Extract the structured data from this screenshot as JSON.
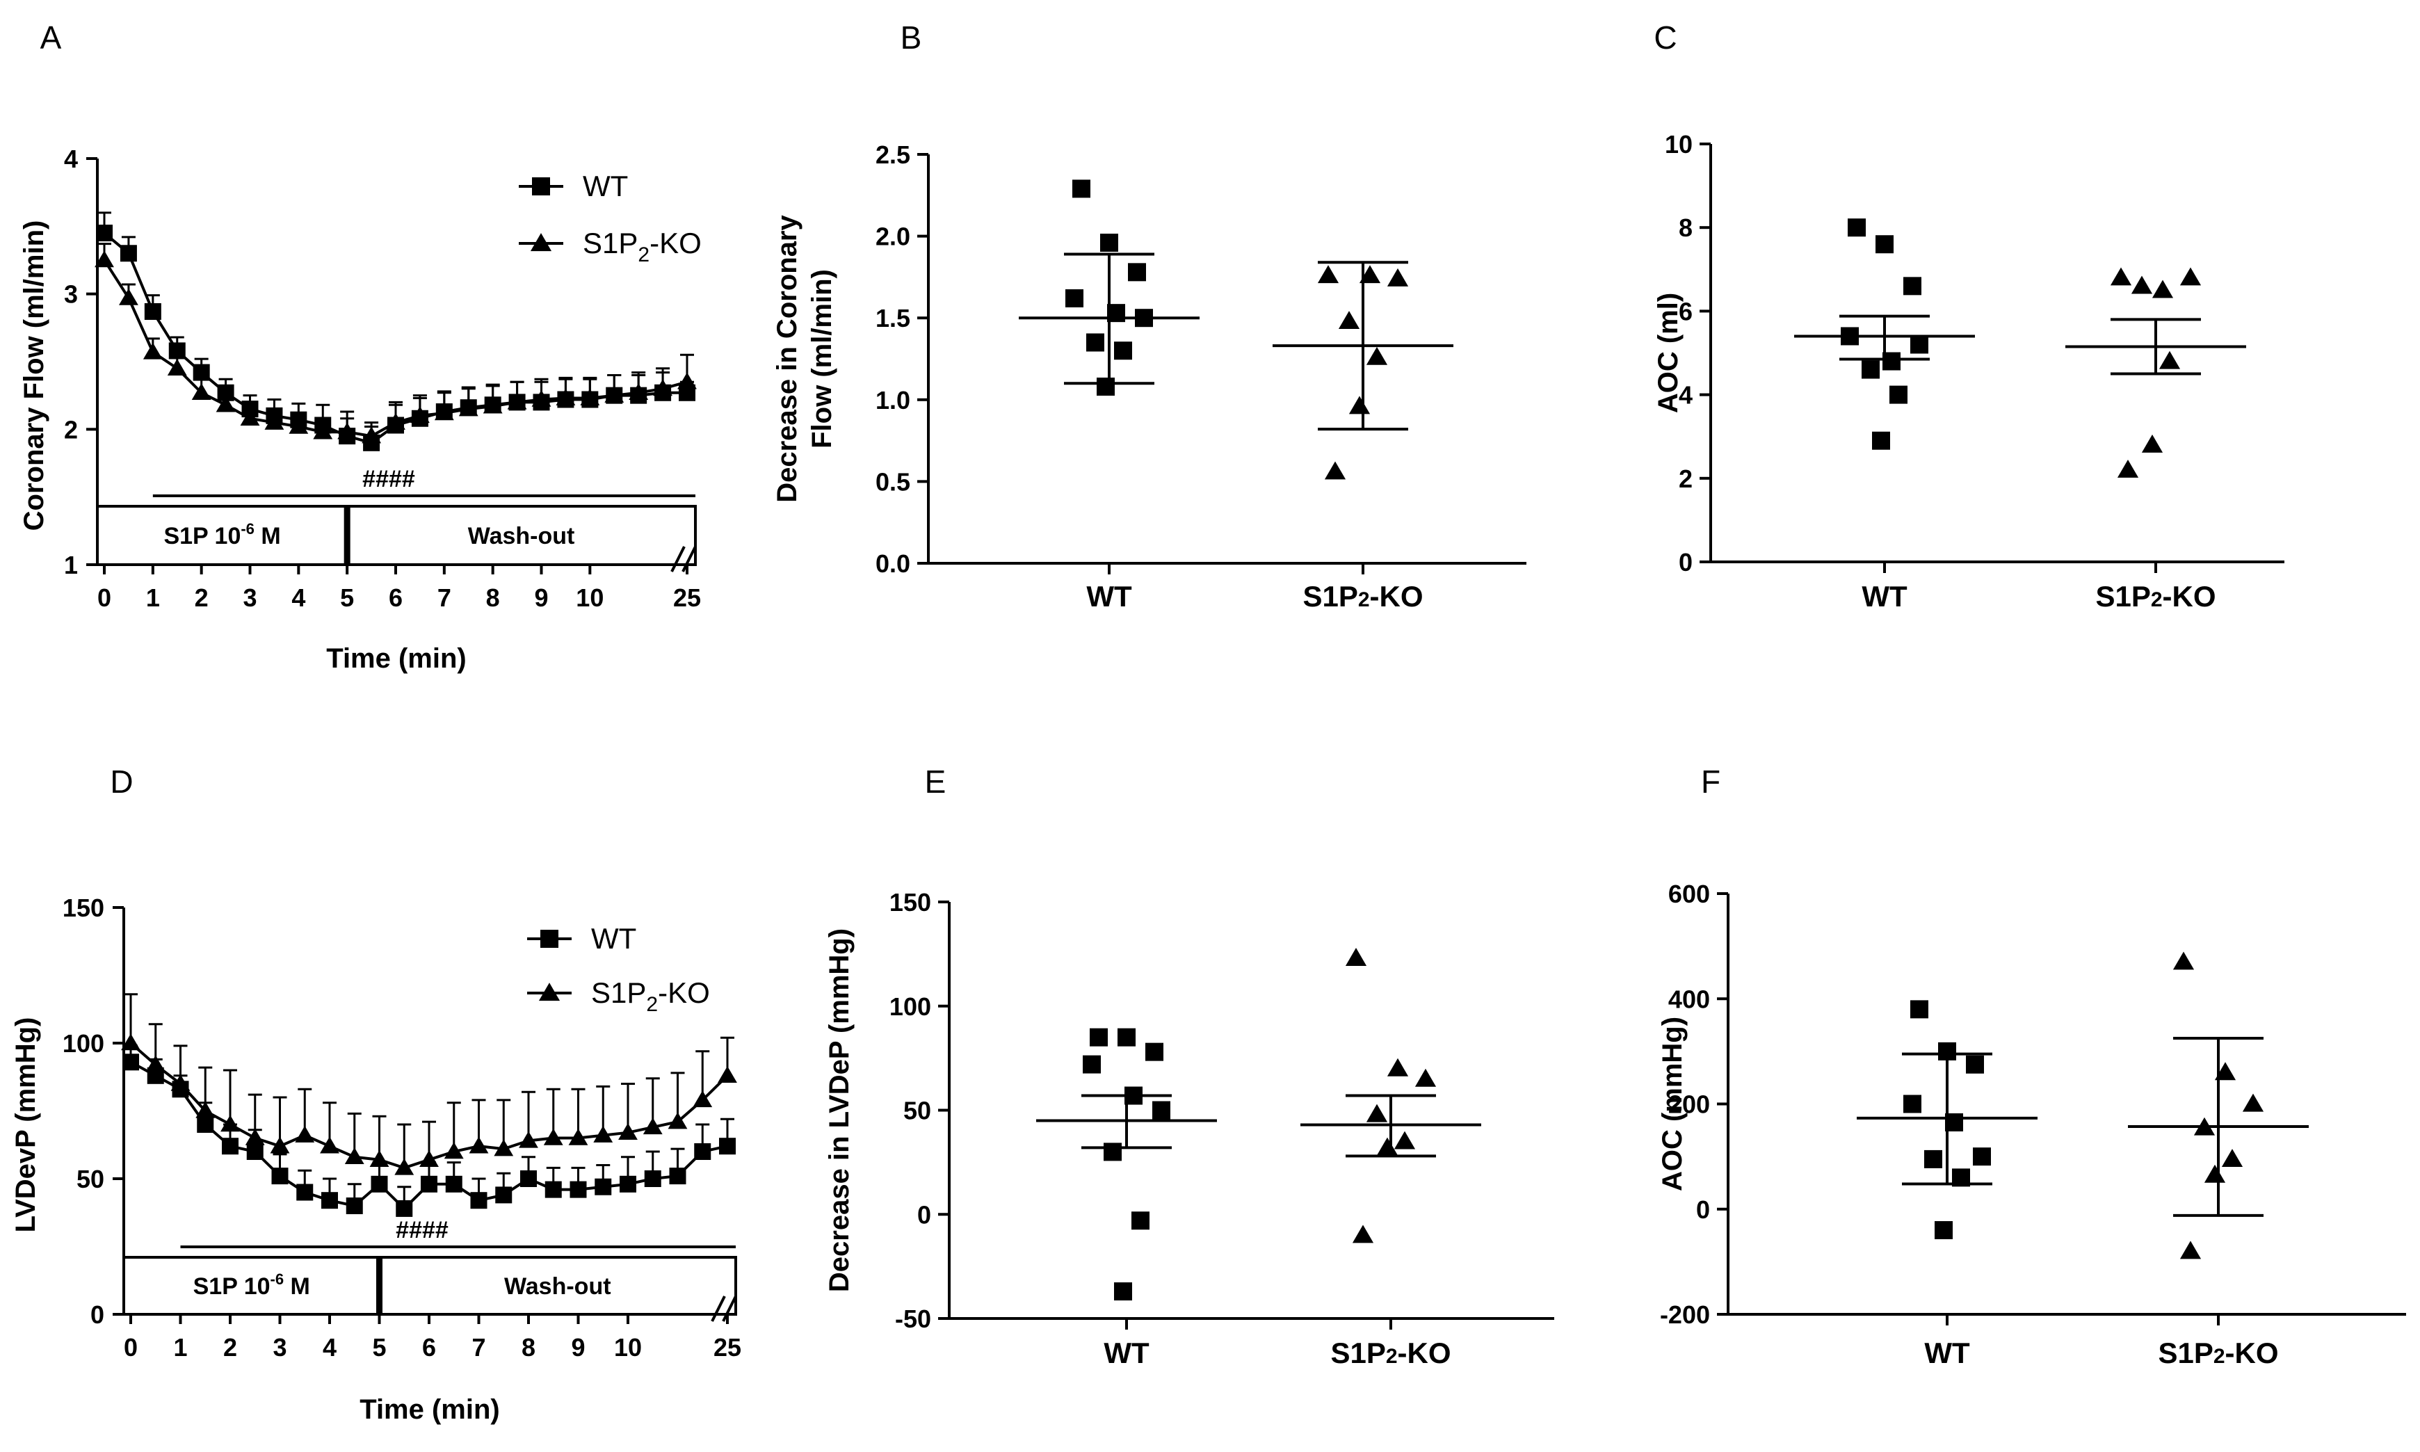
{
  "figure": {
    "panels": [
      "A",
      "B",
      "C",
      "D",
      "E",
      "F"
    ]
  },
  "chart_data": [
    {
      "id": "A",
      "type": "line",
      "title": "",
      "xlabel": "Time (min)",
      "ylabel": "Coronary Flow (ml/min)",
      "ylim": [
        1,
        4
      ],
      "yticks": [
        "1",
        "2",
        "3",
        "4"
      ],
      "xticks": [
        "0",
        "1",
        "2",
        "3",
        "4",
        "5",
        "6",
        "7",
        "8",
        "9",
        "10",
        "25"
      ],
      "x_break_symbol": "//",
      "annotation": "####",
      "protocol": [
        {
          "label_main": "S1P 10",
          "label_sup": "-6",
          "label_end": " M",
          "from": 0,
          "to": 5
        },
        {
          "label_main": "Wash-out",
          "from": 5,
          "to": 25
        }
      ],
      "legend": {
        "position": "top-right",
        "entries": [
          {
            "main": "WT",
            "sub": "",
            "tail": "",
            "marker": "square"
          },
          {
            "main": "S1P",
            "sub": "2",
            "tail": "-KO",
            "marker": "triangle"
          }
        ]
      },
      "series": [
        {
          "name": "WT",
          "marker": "square",
          "x": [
            0,
            0.5,
            1,
            1.5,
            2,
            2.5,
            3,
            3.5,
            4,
            4.5,
            5,
            5.5,
            6,
            6.5,
            7,
            7.5,
            8,
            8.5,
            9,
            9.5,
            10,
            10.5,
            11,
            11.5,
            25
          ],
          "y": [
            3.45,
            3.3,
            2.87,
            2.58,
            2.42,
            2.27,
            2.15,
            2.1,
            2.07,
            2.03,
            1.95,
            1.9,
            2.03,
            2.08,
            2.13,
            2.16,
            2.18,
            2.2,
            2.2,
            2.22,
            2.22,
            2.25,
            2.25,
            2.27,
            2.27
          ],
          "err": [
            0.15,
            0.12,
            0.12,
            0.1,
            0.1,
            0.1,
            0.1,
            0.12,
            0.12,
            0.15,
            0.18,
            0.12,
            0.15,
            0.15,
            0.15,
            0.15,
            0.15,
            0.15,
            0.15,
            0.15,
            0.15,
            0.15,
            0.15,
            0.15,
            0.08
          ]
        },
        {
          "name": "S1P2-KO",
          "marker": "triangle",
          "x": [
            0,
            0.5,
            1,
            1.5,
            2,
            2.5,
            3,
            3.5,
            4,
            4.5,
            5,
            5.5,
            6,
            6.5,
            7,
            7.5,
            8,
            8.5,
            9,
            9.5,
            10,
            10.5,
            11,
            11.5,
            25
          ],
          "y": [
            3.25,
            2.97,
            2.57,
            2.45,
            2.27,
            2.18,
            2.08,
            2.05,
            2.02,
            1.98,
            1.98,
            1.95,
            2.05,
            2.1,
            2.12,
            2.15,
            2.17,
            2.2,
            2.22,
            2.23,
            2.23,
            2.25,
            2.27,
            2.3,
            2.35
          ],
          "err": [
            0.12,
            0.1,
            0.1,
            0.1,
            0.1,
            0.1,
            0.1,
            0.1,
            0.1,
            0.1,
            0.1,
            0.1,
            0.15,
            0.15,
            0.15,
            0.15,
            0.15,
            0.15,
            0.15,
            0.15,
            0.15,
            0.15,
            0.15,
            0.15,
            0.2
          ]
        }
      ]
    },
    {
      "id": "B",
      "type": "scatter",
      "title": "",
      "ylabel_lines": [
        "Decrease in Coronary",
        "Flow (ml/min)"
      ],
      "ylim": [
        0,
        2.5
      ],
      "yticks": [
        "0.0",
        "0.5",
        "1.0",
        "1.5",
        "2.0",
        "2.5"
      ],
      "categories": [
        {
          "main": "WT",
          "sub": "",
          "tail": ""
        },
        {
          "main": "S1P",
          "sub": "2",
          "tail": "-KO"
        }
      ],
      "groups": [
        {
          "category": "WT",
          "marker": "square",
          "values": [
            2.29,
            1.96,
            1.78,
            1.62,
            1.53,
            1.5,
            1.35,
            1.3,
            1.08
          ],
          "mean": 1.5,
          "err_low": 1.1,
          "err_high": 1.89
        },
        {
          "category": "S1P2-KO",
          "marker": "triangle",
          "values": [
            1.76,
            1.76,
            1.74,
            1.48,
            1.26,
            0.96,
            0.56
          ],
          "mean": 1.33,
          "err_low": 0.82,
          "err_high": 1.84
        }
      ]
    },
    {
      "id": "C",
      "type": "scatter",
      "title": "",
      "ylabel_lines": [
        "AOC (ml)"
      ],
      "ylim": [
        0,
        10
      ],
      "yticks": [
        "0",
        "2",
        "4",
        "6",
        "8",
        "10"
      ],
      "categories": [
        {
          "main": "WT",
          "sub": "",
          "tail": ""
        },
        {
          "main": "S1P",
          "sub": "2",
          "tail": "-KO"
        }
      ],
      "groups": [
        {
          "category": "WT",
          "marker": "square",
          "values": [
            8.0,
            7.6,
            6.6,
            5.4,
            4.8,
            5.2,
            4.6,
            4.0,
            2.9
          ],
          "mean": 5.4,
          "err_low": 4.85,
          "err_high": 5.88
        },
        {
          "category": "S1P2-KO",
          "marker": "triangle",
          "values": [
            6.8,
            6.5,
            6.8,
            6.6,
            4.8,
            2.8,
            2.2
          ],
          "mean": 5.15,
          "err_low": 4.5,
          "err_high": 5.8
        }
      ]
    },
    {
      "id": "D",
      "type": "line",
      "title": "",
      "xlabel": "Time (min)",
      "ylabel": "LVDevP (mmHg)",
      "ylim": [
        0,
        150
      ],
      "yticks": [
        "0",
        "50",
        "100",
        "150"
      ],
      "xticks": [
        "0",
        "1",
        "2",
        "3",
        "4",
        "5",
        "6",
        "7",
        "8",
        "9",
        "10",
        "25"
      ],
      "x_break_symbol": "//",
      "annotation": "####",
      "protocol": [
        {
          "label_main": "S1P 10",
          "label_sup": "-6",
          "label_end": " M",
          "from": 0,
          "to": 5
        },
        {
          "label_main": "Wash-out",
          "from": 5,
          "to": 25
        }
      ],
      "legend": {
        "position": "top-right",
        "entries": [
          {
            "main": "WT",
            "sub": "",
            "tail": "",
            "marker": "square"
          },
          {
            "main": "S1P",
            "sub": "2",
            "tail": "-KO",
            "marker": "triangle"
          }
        ]
      },
      "series": [
        {
          "name": "WT",
          "marker": "square",
          "x": [
            0,
            0.5,
            1,
            1.5,
            2,
            2.5,
            3,
            3.5,
            4,
            4.5,
            5,
            5.5,
            6,
            6.5,
            7,
            7.5,
            8,
            8.5,
            9,
            9.5,
            10,
            10.5,
            11,
            11.5,
            25
          ],
          "y": [
            93,
            88,
            83,
            70,
            62,
            60,
            51,
            45,
            42,
            40,
            48,
            39,
            48,
            48,
            42,
            44,
            50,
            46,
            46,
            47,
            48,
            50,
            51,
            60,
            62
          ],
          "err": [
            6,
            6,
            5,
            8,
            8,
            8,
            8,
            8,
            8,
            8,
            8,
            8,
            8,
            8,
            8,
            8,
            8,
            8,
            8,
            8,
            10,
            10,
            10,
            10,
            10
          ]
        },
        {
          "name": "S1P2-KO",
          "marker": "triangle",
          "x": [
            0,
            0.5,
            1,
            1.5,
            2,
            2.5,
            3,
            3.5,
            4,
            4.5,
            5,
            5.5,
            6,
            6.5,
            7,
            7.5,
            8,
            8.5,
            9,
            9.5,
            10,
            10.5,
            11,
            11.5,
            25
          ],
          "y": [
            100,
            92,
            85,
            75,
            70,
            65,
            62,
            66,
            62,
            58,
            57,
            54,
            57,
            60,
            62,
            61,
            64,
            65,
            65,
            66,
            67,
            69,
            71,
            79,
            88
          ],
          "err": [
            18,
            15,
            14,
            16,
            20,
            16,
            18,
            17,
            16,
            16,
            16,
            16,
            14,
            18,
            17,
            18,
            18,
            18,
            18,
            18,
            18,
            18,
            18,
            18,
            14
          ]
        }
      ]
    },
    {
      "id": "E",
      "type": "scatter",
      "title": "",
      "ylabel_lines": [
        "Decrease in LVDeP (mmHg)"
      ],
      "ylim": [
        -50,
        150
      ],
      "yticks": [
        "-50",
        "0",
        "50",
        "100",
        "150"
      ],
      "categories": [
        {
          "main": "WT",
          "sub": "",
          "tail": ""
        },
        {
          "main": "S1P",
          "sub": "2",
          "tail": "-KO"
        }
      ],
      "groups": [
        {
          "category": "WT",
          "marker": "square",
          "values": [
            85,
            85,
            78,
            72,
            57,
            50,
            30,
            -3,
            -37
          ],
          "mean": 45,
          "err_low": 32,
          "err_high": 57
        },
        {
          "category": "S1P2-KO",
          "marker": "triangle",
          "values": [
            123,
            70,
            65,
            48,
            35,
            32,
            -10
          ],
          "mean": 43,
          "err_low": 28,
          "err_high": 57
        }
      ]
    },
    {
      "id": "F",
      "type": "scatter",
      "title": "",
      "ylabel_lines": [
        "AOC (mmHg)"
      ],
      "ylim": [
        -200,
        600
      ],
      "yticks": [
        "-200",
        "0",
        "200",
        "400",
        "600"
      ],
      "categories": [
        {
          "main": "WT",
          "sub": "",
          "tail": ""
        },
        {
          "main": "S1P",
          "sub": "2",
          "tail": "-KO"
        }
      ],
      "groups": [
        {
          "category": "WT",
          "marker": "square",
          "values": [
            380,
            300,
            275,
            200,
            165,
            100,
            95,
            60,
            -40
          ],
          "mean": 173,
          "err_low": 48,
          "err_high": 295
        },
        {
          "category": "S1P2-KO",
          "marker": "triangle",
          "values": [
            470,
            260,
            200,
            155,
            95,
            65,
            -80
          ],
          "mean": 157,
          "err_low": -12,
          "err_high": 325
        }
      ]
    }
  ]
}
